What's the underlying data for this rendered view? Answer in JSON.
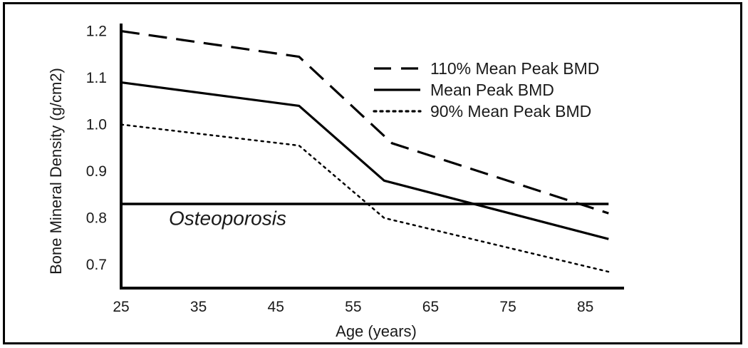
{
  "chart_data": {
    "type": "line",
    "xlabel": "Age (years)",
    "ylabel": "Bone Mineral Density (g/cm2)",
    "xlim": [
      25,
      90
    ],
    "ylim": [
      0.65,
      1.21
    ],
    "x_ticks": [
      25,
      35,
      45,
      55,
      65,
      75,
      85
    ],
    "y_ticks": [
      0.7,
      0.8,
      0.9,
      1.0,
      1.1,
      1.2
    ],
    "y_tick_labels": [
      "0.7",
      "0.8",
      "0.9",
      "1.0",
      "1.1",
      "1.2"
    ],
    "grid": false,
    "legend_position": "top-right",
    "series": [
      {
        "name": "110% Mean Peak BMD",
        "style": "dashed",
        "x": [
          25,
          48,
          60,
          88
        ],
        "y": [
          1.2,
          1.145,
          0.96,
          0.81
        ]
      },
      {
        "name": "Mean Peak BMD",
        "style": "solid",
        "x": [
          25,
          48,
          59,
          88
        ],
        "y": [
          1.09,
          1.04,
          0.88,
          0.755
        ]
      },
      {
        "name": "90% Mean Peak BMD",
        "style": "dotted",
        "x": [
          25,
          48,
          59,
          88
        ],
        "y": [
          1.0,
          0.955,
          0.8,
          0.685
        ]
      }
    ],
    "threshold": {
      "y": 0.83,
      "x": [
        25,
        88
      ]
    },
    "annotation": {
      "text": "Osteoporosis",
      "x": 32,
      "y": 0.785
    },
    "colors": {
      "line": "#000000",
      "text": "#1a1a1a"
    }
  }
}
